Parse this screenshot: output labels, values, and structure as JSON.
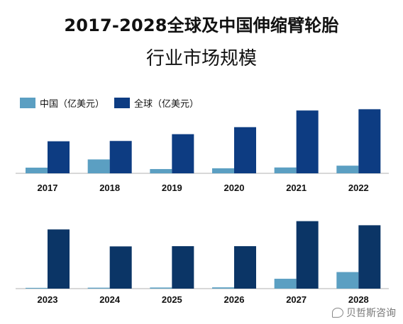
{
  "title_line1": "2017-2028全球及中国伸缩臂轮胎",
  "title_line2": "行业市场规模",
  "watermark_text": "贝哲斯咨询",
  "colors": {
    "china": "#5b9fc2",
    "global_top": "#0d3c82",
    "global_bottom": "#0b3566",
    "axis": "#b0b0b0"
  },
  "chart_data": [
    {
      "type": "bar",
      "categories": [
        "2017",
        "2018",
        "2019",
        "2020",
        "2021",
        "2022"
      ],
      "series": [
        {
          "name": "中国（亿美元）",
          "values": [
            7.2,
            17.6,
            5.4,
            6.4,
            7.4,
            9.7
          ]
        },
        {
          "name": "全球（亿美元）",
          "values": [
            40.6,
            41.0,
            49.6,
            58.5,
            79.6,
            81.2
          ]
        }
      ],
      "ylim": [
        0,
        95
      ],
      "legend": "top-left"
    },
    {
      "type": "bar",
      "categories": [
        "2023",
        "2024",
        "2025",
        "2026",
        "2027",
        "2028"
      ],
      "series": [
        {
          "name": "中国（亿美元）",
          "values": [
            1.0,
            1.2,
            1.4,
            1.6,
            12.5,
            21.0
          ]
        },
        {
          "name": "全球（亿美元）",
          "values": [
            75.0,
            53.5,
            53.8,
            53.8,
            85.5,
            80.3
          ]
        }
      ],
      "ylim": [
        0,
        95
      ]
    }
  ]
}
